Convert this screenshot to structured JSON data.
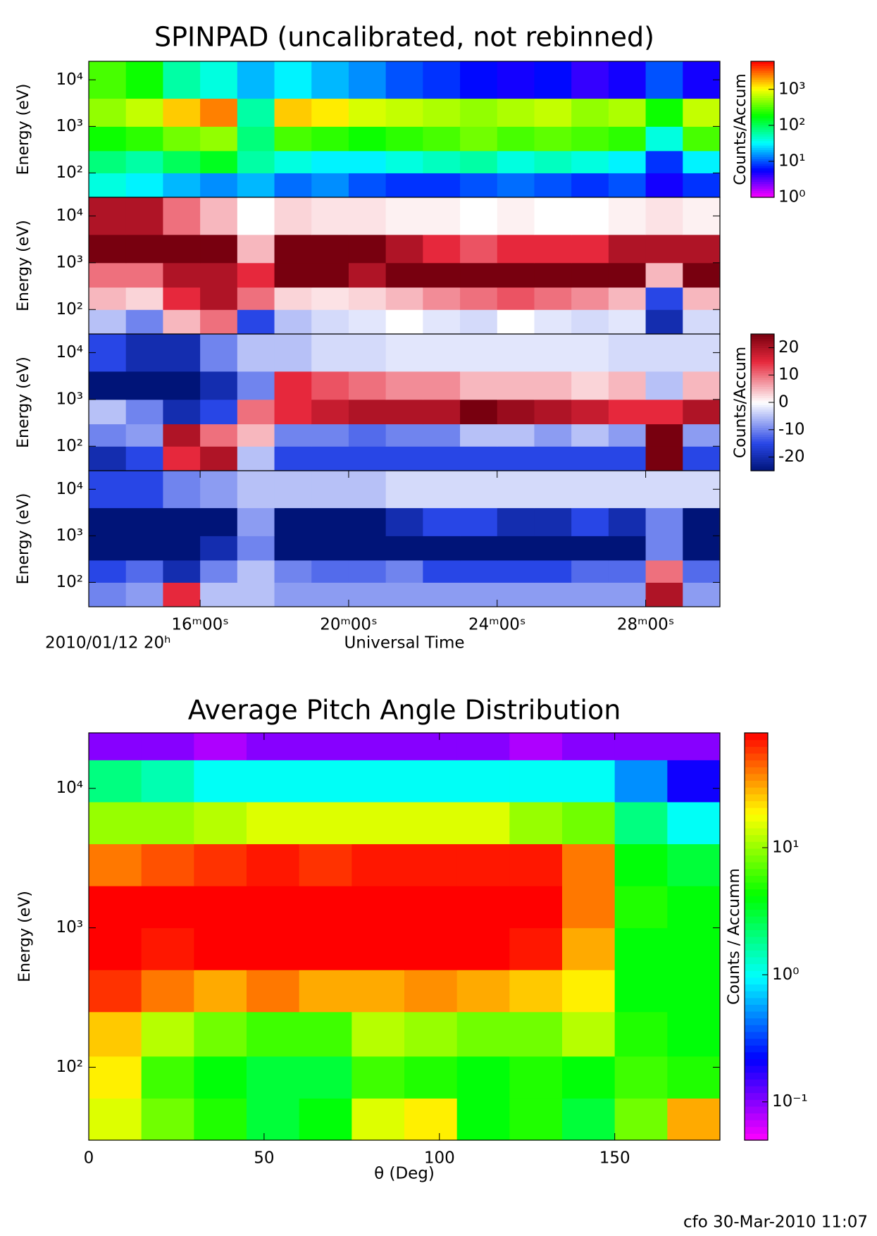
{
  "chart_data": [
    {
      "type": "heatmap",
      "title": "SPINPAD (uncalibrated, not rebinned)",
      "ylabel": "Energy (eV)",
      "xlim": [
        13,
        30
      ],
      "ylim": [
        30,
        25000
      ],
      "ylog": true,
      "yticks": [
        {
          "value": 100,
          "label": "10²"
        },
        {
          "value": 1000,
          "label": "10³"
        },
        {
          "value": 10000,
          "label": "10⁴"
        }
      ],
      "xbins": [
        13,
        14,
        15,
        16,
        17,
        18,
        19,
        20,
        21,
        22,
        23,
        24,
        25,
        26,
        27,
        28,
        29,
        30
      ],
      "ybins": [
        30,
        100,
        300,
        1000,
        4000,
        25000
      ],
      "colormap": "rainbow",
      "zlog": true,
      "zlim": [
        1,
        6000
      ],
      "zticks": [
        {
          "value": 1,
          "label": "10⁰"
        },
        {
          "value": 10,
          "label": "10¹"
        },
        {
          "value": 100,
          "label": "10²"
        },
        {
          "value": 1000,
          "label": "10³"
        }
      ],
      "colorbar_title": "Counts/Accum",
      "values": [
        [
          40,
          30,
          20,
          15,
          20,
          12,
          15,
          10,
          8,
          8,
          10,
          12,
          10,
          8,
          10,
          5,
          8
        ],
        [
          80,
          60,
          100,
          150,
          60,
          40,
          30,
          30,
          40,
          50,
          60,
          40,
          50,
          40,
          30,
          8,
          30
        ],
        [
          200,
          250,
          400,
          500,
          80,
          300,
          250,
          200,
          250,
          300,
          400,
          300,
          350,
          300,
          250,
          40,
          300
        ],
        [
          500,
          700,
          1500,
          2500,
          60,
          1500,
          1200,
          800,
          700,
          600,
          500,
          600,
          700,
          500,
          600,
          200,
          700
        ],
        [
          300,
          200,
          60,
          40,
          20,
          30,
          20,
          15,
          10,
          8,
          6,
          5,
          6,
          4,
          5,
          10,
          5
        ]
      ]
    },
    {
      "type": "heatmap",
      "ylabel": "Energy (eV)",
      "xlim": [
        13,
        30
      ],
      "ylim": [
        30,
        25000
      ],
      "ylog": true,
      "yticks": [
        {
          "value": 100,
          "label": "10²"
        },
        {
          "value": 1000,
          "label": "10³"
        },
        {
          "value": 10000,
          "label": "10⁴"
        }
      ],
      "xbins": [
        13,
        14,
        15,
        16,
        17,
        18,
        19,
        20,
        21,
        22,
        23,
        24,
        25,
        26,
        27,
        28,
        29,
        30
      ],
      "ybins": [
        30,
        100,
        300,
        1000,
        4000,
        25000
      ],
      "colormap": "diverging",
      "zlim": [
        -25,
        25
      ],
      "values": [
        [
          -5,
          -10,
          5,
          10,
          -15,
          -5,
          -3,
          -2,
          0,
          -2,
          -3,
          0,
          -2,
          -3,
          -2,
          -20,
          -3
        ],
        [
          5,
          3,
          15,
          20,
          10,
          3,
          2,
          3,
          5,
          8,
          10,
          12,
          10,
          8,
          5,
          -15,
          5
        ],
        [
          10,
          10,
          20,
          20,
          15,
          25,
          25,
          20,
          25,
          25,
          25,
          25,
          25,
          25,
          25,
          5,
          25
        ],
        [
          25,
          25,
          25,
          25,
          5,
          25,
          25,
          25,
          20,
          15,
          12,
          15,
          15,
          15,
          20,
          20,
          20
        ],
        [
          20,
          20,
          10,
          5,
          0,
          3,
          2,
          2,
          1,
          1,
          0,
          1,
          0,
          0,
          1,
          2,
          1
        ]
      ]
    },
    {
      "type": "heatmap",
      "ylabel": "Energy (eV)",
      "xlim": [
        13,
        30
      ],
      "ylim": [
        30,
        25000
      ],
      "ylog": true,
      "yticks": [
        {
          "value": 100,
          "label": "10²"
        },
        {
          "value": 1000,
          "label": "10³"
        },
        {
          "value": 10000,
          "label": "10⁴"
        }
      ],
      "xbins": [
        13,
        14,
        15,
        16,
        17,
        18,
        19,
        20,
        21,
        22,
        23,
        24,
        25,
        26,
        27,
        28,
        29,
        30
      ],
      "ybins": [
        30,
        100,
        300,
        1000,
        4000,
        25000
      ],
      "colormap": "diverging",
      "zlim": [
        -25,
        25
      ],
      "zticks": [
        -20,
        -10,
        0,
        10,
        20
      ],
      "colorbar_title": "Counts/Accum",
      "values": [
        [
          -20,
          -15,
          15,
          20,
          -5,
          -15,
          -15,
          -15,
          -15,
          -15,
          -15,
          -15,
          -15,
          -15,
          -15,
          25,
          -15
        ],
        [
          -10,
          -8,
          20,
          10,
          5,
          -10,
          -10,
          -12,
          -10,
          -10,
          -5,
          -5,
          -8,
          -5,
          -8,
          25,
          -8
        ],
        [
          -5,
          -10,
          -20,
          -15,
          10,
          15,
          18,
          20,
          20,
          20,
          25,
          22,
          20,
          18,
          15,
          15,
          20
        ],
        [
          -25,
          -25,
          -25,
          -20,
          -10,
          15,
          12,
          10,
          8,
          8,
          5,
          5,
          5,
          3,
          5,
          -5,
          5
        ],
        [
          -15,
          -20,
          -20,
          -10,
          -5,
          -5,
          -3,
          -3,
          -2,
          -2,
          -2,
          -2,
          -2,
          -2,
          -3,
          -3,
          -3
        ]
      ]
    },
    {
      "type": "heatmap",
      "ylabel": "Energy (eV)",
      "xlim": [
        13,
        30
      ],
      "ylim": [
        30,
        25000
      ],
      "ylog": true,
      "yticks": [
        {
          "value": 100,
          "label": "10²"
        },
        {
          "value": 1000,
          "label": "10³"
        },
        {
          "value": 10000,
          "label": "10⁴"
        }
      ],
      "xticks": [
        {
          "value": 16,
          "label": "16ᵐ00ˢ"
        },
        {
          "value": 20,
          "label": "20ᵐ00ˢ"
        },
        {
          "value": 24,
          "label": "24ᵐ00ˢ"
        },
        {
          "value": 28,
          "label": "28ᵐ00ˢ"
        }
      ],
      "xlabel": "Universal Time",
      "date_label": "2010/01/12 20ʰ",
      "xbins": [
        13,
        14,
        15,
        16,
        17,
        18,
        19,
        20,
        21,
        22,
        23,
        24,
        25,
        26,
        27,
        28,
        29,
        30
      ],
      "ybins": [
        30,
        100,
        300,
        1000,
        4000,
        25000
      ],
      "colormap": "diverging",
      "zlim": [
        -25,
        25
      ],
      "values": [
        [
          -10,
          -8,
          15,
          -5,
          -5,
          -8,
          -8,
          -8,
          -8,
          -8,
          -8,
          -8,
          -8,
          -8,
          -8,
          20,
          -8
        ],
        [
          -15,
          -12,
          -20,
          -10,
          -5,
          -10,
          -12,
          -12,
          -10,
          -15,
          -15,
          -15,
          -15,
          -12,
          -12,
          10,
          -12
        ],
        [
          -25,
          -25,
          -25,
          -20,
          -10,
          -25,
          -25,
          -25,
          -25,
          -25,
          -25,
          -25,
          -25,
          -25,
          -25,
          -10,
          -25
        ],
        [
          -25,
          -25,
          -25,
          -25,
          -8,
          -25,
          -25,
          -25,
          -20,
          -15,
          -15,
          -20,
          -20,
          -15,
          -20,
          -10,
          -25
        ],
        [
          -15,
          -15,
          -10,
          -8,
          -5,
          -5,
          -5,
          -5,
          -3,
          -3,
          -3,
          -3,
          -3,
          -3,
          -3,
          -3,
          -3
        ]
      ]
    },
    {
      "type": "heatmap",
      "title": "Average Pitch Angle Distribution",
      "xlabel": "θ (Deg)",
      "ylabel": "Energy (eV)",
      "xlim": [
        0,
        180
      ],
      "xticks": [
        0,
        50,
        100,
        150
      ],
      "ylim": [
        30,
        25000
      ],
      "ylog": true,
      "yticks": [
        {
          "value": 100,
          "label": "10²"
        },
        {
          "value": 1000,
          "label": "10³"
        },
        {
          "value": 10000,
          "label": "10⁴"
        }
      ],
      "xbins": [
        0,
        15,
        30,
        45,
        60,
        75,
        90,
        105,
        120,
        135,
        150,
        165,
        180
      ],
      "ybins": [
        30,
        60,
        120,
        250,
        500,
        1000,
        2000,
        4000,
        8000,
        16000,
        25000
      ],
      "colormap": "rainbow",
      "zlog": true,
      "zlim": [
        0.05,
        80
      ],
      "zticks": [
        {
          "value": 0.1,
          "label": "10⁻¹"
        },
        {
          "value": 1,
          "label": "10⁰"
        },
        {
          "value": 10,
          "label": "10¹"
        }
      ],
      "colorbar_title": "Counts / Accumm",
      "values": [
        [
          15,
          8,
          5,
          3,
          4,
          15,
          20,
          4,
          5,
          3,
          8,
          30
        ],
        [
          20,
          6,
          4,
          3,
          3,
          6,
          5,
          4,
          5,
          4,
          6,
          5
        ],
        [
          25,
          12,
          8,
          6,
          6,
          12,
          10,
          8,
          8,
          12,
          5,
          4
        ],
        [
          60,
          40,
          30,
          40,
          30,
          30,
          35,
          30,
          25,
          20,
          4,
          4
        ],
        [
          90,
          70,
          80,
          80,
          80,
          80,
          80,
          80,
          70,
          30,
          4,
          4
        ],
        [
          80,
          80,
          80,
          90,
          90,
          90,
          80,
          80,
          80,
          40,
          5,
          4
        ],
        [
          40,
          50,
          60,
          70,
          60,
          70,
          70,
          70,
          70,
          40,
          4,
          3
        ],
        [
          10,
          10,
          12,
          15,
          15,
          15,
          15,
          15,
          10,
          8,
          2,
          1
        ],
        [
          2,
          1.5,
          1,
          1,
          1,
          1,
          1,
          1,
          1,
          1,
          0.5,
          0.2
        ],
        [
          0.1,
          0.1,
          0.08,
          0.1,
          0.1,
          0.1,
          0.1,
          0.1,
          0.08,
          0.1,
          0.1,
          0.1
        ]
      ]
    }
  ],
  "footer": "cfo 30-Mar-2010 11:07"
}
